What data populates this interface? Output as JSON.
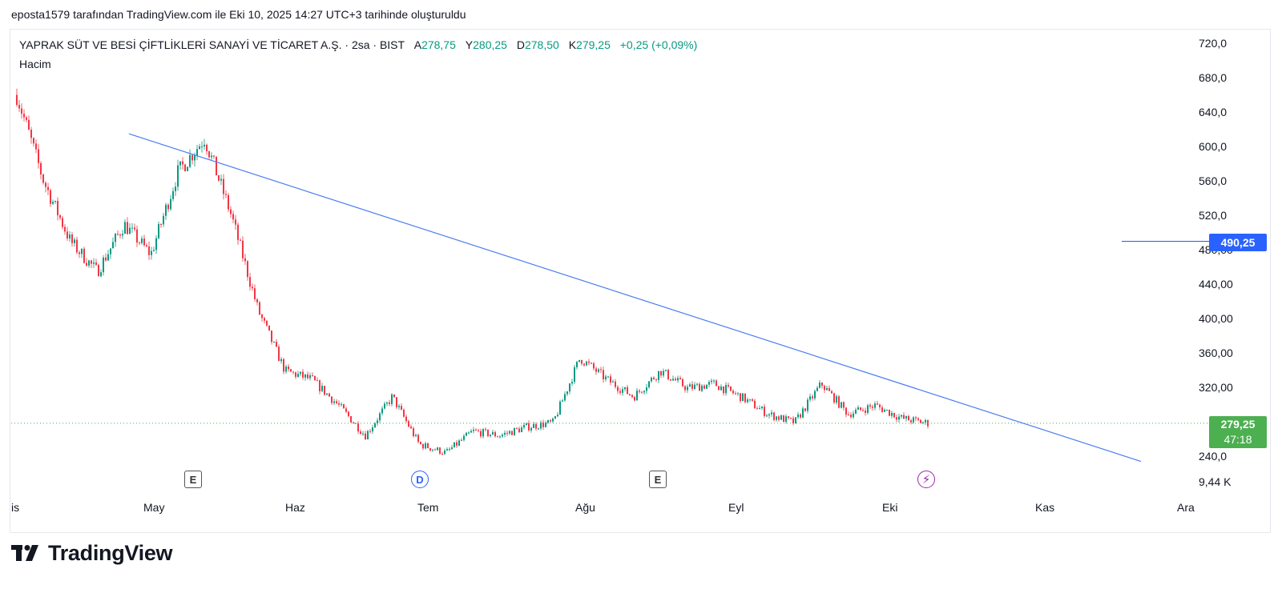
{
  "caption": "eposta1579 tarafından TradingView.com ile Eki 10, 2025 14:27 UTC+3 tarihinde oluşturuldu",
  "legend": {
    "symbol": "YAPRAK SÜT VE BESİ ÇİFTLİKLERİ SANAYİ VE TİCARET A.Ş. · 2sa · BIST",
    "open_label": "A",
    "open": "278,75",
    "high_label": "Y",
    "high": "280,25",
    "low_label": "D",
    "low": "278,50",
    "close_label": "K",
    "close": "279,25",
    "change": "+0,25 (+0,09%)"
  },
  "volume_label": "Hacim",
  "price_axis": [
    "720,0",
    "680,0",
    "640,0",
    "600,0",
    "560,0",
    "520,0",
    "480,00",
    "440,00",
    "400,00",
    "360,00",
    "320,00",
    "240,0"
  ],
  "volume_axis_value": "9,44 K",
  "time_axis": [
    "is",
    "May",
    "Haz",
    "Tem",
    "Ağu",
    "Eyl",
    "Eki",
    "Kas",
    "Ara"
  ],
  "tags": {
    "alert_price": "490,25",
    "last_price": "279,25",
    "countdown": "47:18"
  },
  "events": [
    {
      "label": "E",
      "kind": "earnings",
      "near": "May"
    },
    {
      "label": "D",
      "kind": "dividend",
      "near": "Tem"
    },
    {
      "label": "E",
      "kind": "earnings",
      "near": "Ağu"
    },
    {
      "label": "⚡",
      "kind": "flash",
      "near": "Eki"
    }
  ],
  "colors": {
    "up": "#089981",
    "down": "#f23645",
    "trendline": "#4a7df0",
    "alert": "#2962ff",
    "last_price": "#4caf50",
    "flash_event": "#9c27b0"
  },
  "brand": "TradingView",
  "chart_data": {
    "type": "candlestick",
    "interval": "2sa",
    "y_range": [
      230,
      730
    ],
    "approx_close_path": [
      {
        "x": "Nis (late)",
        "y": 660
      },
      {
        "x": "Nis (late)",
        "y": 560
      },
      {
        "x": "Nis (late)",
        "y": 490
      },
      {
        "x": "Nis (late)",
        "y": 455
      },
      {
        "x": "Nis (late)",
        "y": 510
      },
      {
        "x": "Nis (late)",
        "y": 475
      },
      {
        "x": "Nis (late)",
        "y": 570
      },
      {
        "x": "May",
        "y": 610
      },
      {
        "x": "May",
        "y": 520
      },
      {
        "x": "May",
        "y": 410
      },
      {
        "x": "May",
        "y": 340
      },
      {
        "x": "May",
        "y": 330
      },
      {
        "x": "May",
        "y": 300
      },
      {
        "x": "Haz",
        "y": 265
      },
      {
        "x": "Haz",
        "y": 310
      },
      {
        "x": "Haz",
        "y": 255
      },
      {
        "x": "Haz",
        "y": 245
      },
      {
        "x": "Tem",
        "y": 270
      },
      {
        "x": "Tem",
        "y": 265
      },
      {
        "x": "Tem",
        "y": 275
      },
      {
        "x": "Tem",
        "y": 280
      },
      {
        "x": "Ağu",
        "y": 355
      },
      {
        "x": "Ağu",
        "y": 330
      },
      {
        "x": "Ağu",
        "y": 310
      },
      {
        "x": "Ağu",
        "y": 340
      },
      {
        "x": "Ağu",
        "y": 320
      },
      {
        "x": "Eyl",
        "y": 325
      },
      {
        "x": "Eyl",
        "y": 310
      },
      {
        "x": "Eyl",
        "y": 290
      },
      {
        "x": "Eyl",
        "y": 280
      },
      {
        "x": "Eyl",
        "y": 325
      },
      {
        "x": "Eki",
        "y": 290
      },
      {
        "x": "Eki",
        "y": 300
      },
      {
        "x": "Eki",
        "y": 285
      },
      {
        "x": "Eki",
        "y": 279.25
      }
    ],
    "trendline": {
      "from": {
        "x": "May",
        "y": 615
      },
      "to": {
        "x": "Ara",
        "y": 235
      }
    },
    "alert_level": 490.25,
    "last_price": 279.25
  }
}
